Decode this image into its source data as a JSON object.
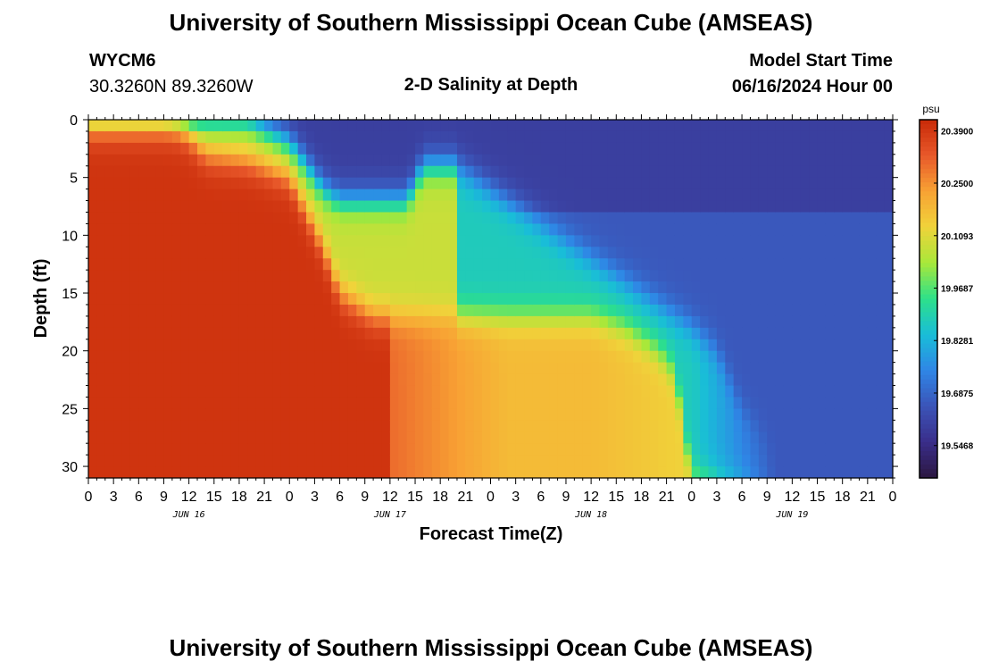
{
  "header": {
    "title": "University of Southern Mississippi Ocean Cube (AMSEAS)",
    "station": "WYCM6",
    "coords": "30.3260N  89.3260W",
    "subtitle": "2-D Salinity at Depth",
    "model_start_label": "Model Start Time",
    "model_start_value": "06/16/2024 Hour 00"
  },
  "footer": {
    "title": "University of Southern Mississippi Ocean Cube (AMSEAS)"
  },
  "colors": {
    "scale": [
      "#2b1640",
      "#3a2e8a",
      "#3b54b8",
      "#2f86e6",
      "#19bdd8",
      "#2de08a",
      "#a8e83a",
      "#f0d33a",
      "#f8a234",
      "#e8582a",
      "#c82a08"
    ]
  },
  "chart_data": {
    "type": "heatmap",
    "xlabel": "Forecast Time(Z)",
    "ylabel": "Depth (ft)",
    "colorbar_unit": "psu",
    "colorbar_ticks": [
      "20.3900",
      "20.2500",
      "20.1093",
      "19.9687",
      "19.8281",
      "19.6875",
      "19.5468"
    ],
    "colorbar_tick_values": [
      20.39,
      20.25,
      20.1093,
      19.9687,
      19.8281,
      19.6875,
      19.5468
    ],
    "zlim": [
      19.46,
      20.42
    ],
    "xlim": [
      0,
      96
    ],
    "ylim": [
      0,
      31
    ],
    "y_reversed": true,
    "y_ticks": [
      0,
      5,
      10,
      15,
      20,
      25,
      30
    ],
    "x_ticks": [
      0,
      3,
      6,
      9,
      12,
      15,
      18,
      21,
      24,
      27,
      30,
      33,
      36,
      39,
      42,
      45,
      48,
      51,
      54,
      57,
      60,
      63,
      66,
      69,
      72,
      75,
      78,
      81,
      84,
      87,
      90,
      93,
      96
    ],
    "x_tick_labels": [
      "0",
      "3",
      "6",
      "9",
      "12",
      "15",
      "18",
      "21",
      "0",
      "3",
      "6",
      "9",
      "12",
      "15",
      "18",
      "21",
      "0",
      "3",
      "6",
      "9",
      "12",
      "15",
      "18",
      "21",
      "0",
      "3",
      "6",
      "9",
      "12",
      "15",
      "18",
      "21",
      "0"
    ],
    "day_labels": [
      "JUN 16",
      "JUN 17",
      "JUN 18",
      "JUN 19"
    ],
    "day_label_positions": [
      12,
      36,
      60,
      84
    ],
    "grid": false,
    "transitions": {
      "hours": [
        0,
        6,
        9,
        11,
        14,
        19,
        24,
        26,
        28,
        30,
        34,
        38,
        40,
        44,
        48,
        52,
        56,
        60,
        64,
        68,
        70,
        72,
        75,
        78,
        84,
        90,
        96
      ],
      "depth_high": [
        0,
        0,
        0,
        0.5,
        3,
        3.5,
        5,
        8,
        11,
        15,
        17,
        17,
        17,
        17,
        17,
        17,
        17,
        17,
        18,
        20,
        22,
        31,
        31,
        31,
        31,
        31,
        31
      ],
      "depth_low": [
        0,
        0,
        0,
        0,
        0,
        0,
        2,
        4,
        6,
        7,
        7,
        7,
        4,
        4,
        6,
        8,
        10,
        12,
        14,
        16,
        17,
        18,
        20,
        25,
        30,
        31,
        31
      ]
    },
    "zone_values": {
      "high_early": 20.4,
      "high_mid": 20.3,
      "high_late": 20.18,
      "mid_band_early": 20.08,
      "mid_band_late": 19.88,
      "surface_low": 19.6,
      "deep_low": 19.66
    }
  }
}
